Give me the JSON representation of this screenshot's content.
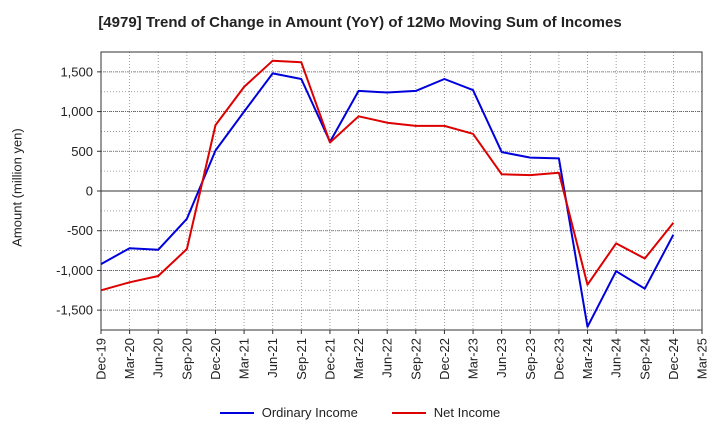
{
  "chart_data": {
    "type": "line",
    "title": "[4979]  Trend of Change in Amount (YoY) of 12Mo Moving Sum of Incomes",
    "xlabel": "",
    "ylabel": "Amount (million yen)",
    "categories": [
      "Dec-19",
      "Mar-20",
      "Jun-20",
      "Sep-20",
      "Dec-20",
      "Mar-21",
      "Jun-21",
      "Sep-21",
      "Dec-21",
      "Mar-22",
      "Jun-22",
      "Sep-22",
      "Dec-22",
      "Mar-23",
      "Jun-23",
      "Sep-23",
      "Dec-23",
      "Mar-24",
      "Jun-24",
      "Sep-24",
      "Dec-24",
      "Mar-25"
    ],
    "ylim": [
      -1750,
      1750
    ],
    "yticks": [
      -1500,
      -1000,
      -500,
      0,
      500,
      1000,
      1500
    ],
    "ytick_labels": [
      "-1,500",
      "-1,000",
      "-500",
      "0",
      "500",
      "1,000",
      "1,500"
    ],
    "grid": true,
    "legend_position": "bottom",
    "series": [
      {
        "name": "Ordinary Income",
        "color": "#0000dd",
        "values": [
          -920,
          -720,
          -740,
          -350,
          510,
          1000,
          1480,
          1410,
          620,
          1260,
          1240,
          1260,
          1410,
          1270,
          490,
          420,
          410,
          -1710,
          -1010,
          -1230,
          -550,
          null
        ]
      },
      {
        "name": "Net Income",
        "color": "#dd0000",
        "values": [
          -1250,
          -1150,
          -1070,
          -730,
          830,
          1310,
          1640,
          1620,
          610,
          940,
          860,
          820,
          820,
          720,
          210,
          200,
          230,
          -1180,
          -660,
          -850,
          -400,
          null
        ]
      }
    ]
  }
}
